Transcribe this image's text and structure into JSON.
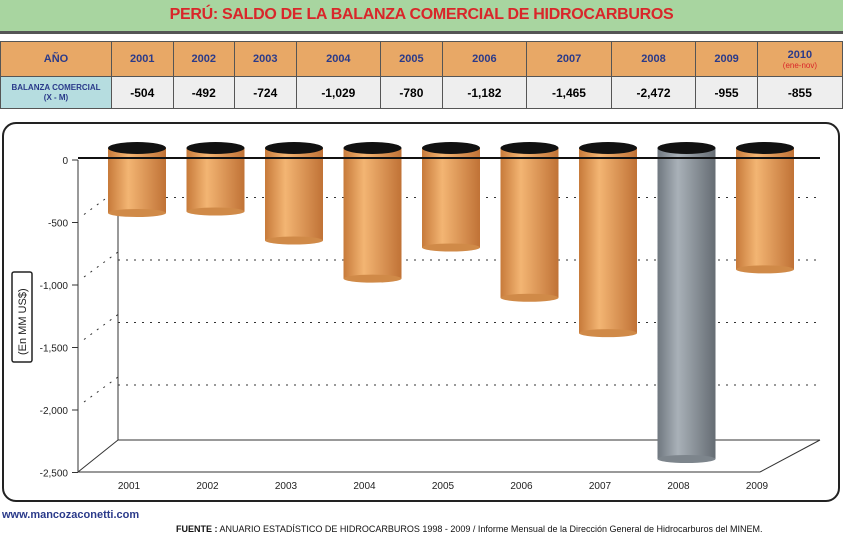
{
  "title": "PERÚ: SALDO DE LA BALANZA COMERCIAL DE HIDROCARBUROS",
  "table": {
    "header_label": "AÑO",
    "row_label": "BALANZA COMERCIAL",
    "row_sublabel": "(X - M)",
    "years": [
      "2001",
      "2002",
      "2003",
      "2004",
      "2005",
      "2006",
      "2007",
      "2008",
      "2009",
      "2010"
    ],
    "year_note": "(ene-nov)",
    "values": [
      "-504",
      "-492",
      "-724",
      "-1,029",
      "-780",
      "-1,182",
      "-1,465",
      "-2,472",
      "-955",
      "-855"
    ]
  },
  "chart_data": {
    "type": "bar",
    "title": "",
    "xlabel": "",
    "ylabel": "(En MM US$)",
    "categories": [
      "2001",
      "2002",
      "2003",
      "2004",
      "2005",
      "2006",
      "2007",
      "2008",
      "2009"
    ],
    "values": [
      -504,
      -492,
      -724,
      -1029,
      -780,
      -1182,
      -1465,
      -2472,
      -955
    ],
    "ylim": [
      -2500,
      0
    ],
    "yticks": [
      0,
      -500,
      -1000,
      -1500,
      -2000,
      -2500
    ],
    "ytick_labels": [
      "0",
      "-500",
      "-1,000",
      "-1,500",
      "-2,000",
      "-2,500"
    ],
    "highlight_category": "2008",
    "colors": {
      "default": "#e39a55",
      "highlight": "#8c949c"
    },
    "grid": true
  },
  "footer": {
    "website": "www.mancozaconetti.com",
    "source_label": "FUENTE :",
    "source_text": "ANUARIO ESTADÍSTICO DE HIDROCARBUROS 1998 - 2009 / Informe Mensual de la Dirección General de Hidrocarburos del MINEM."
  }
}
